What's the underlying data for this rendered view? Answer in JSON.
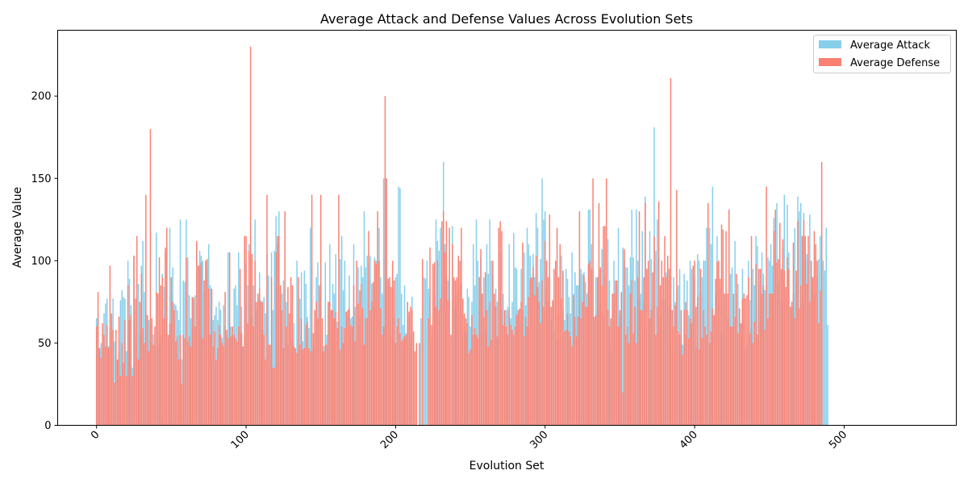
{
  "chart_data": {
    "type": "bar",
    "title": "Average Attack and Defense Values Across Evolution Sets",
    "xlabel": "Evolution Set",
    "ylabel": "Average Value",
    "xlim": [
      -26,
      575
    ],
    "ylim": [
      0,
      240
    ],
    "x_ticks": [
      0,
      100,
      200,
      300,
      400,
      500
    ],
    "y_ticks": [
      0,
      50,
      100,
      150,
      200
    ],
    "legend_position": "top-right",
    "grid": false,
    "colors": {
      "attack": "#87ceeb",
      "defense": "#fa8072"
    },
    "legend": [
      "Average Attack",
      "Average Defense"
    ],
    "x_start": 0,
    "series": [
      {
        "name": "Average Attack",
        "values": [
          65,
          66,
          45,
          50,
          47,
          68,
          74,
          77,
          48,
          56,
          60,
          77,
          51,
          50,
          38,
          45,
          76,
          82,
          78,
          77,
          45,
          100,
          89,
          73,
          35,
          103,
          54,
          43,
          86,
          55,
          97,
          112,
          81,
          68,
          67,
          64,
          61,
          50,
          55,
          48,
          117,
          46,
          50,
          55,
          92,
          84,
          105,
          108,
          7,
          120,
          80,
          96,
          74,
          73,
          70,
          64,
          125,
          40,
          88,
          87,
          125,
          102,
          79,
          65,
          61,
          78,
          79,
          110,
          96,
          106,
          103,
          100,
          81,
          100,
          95,
          110,
          85,
          83,
          64,
          67,
          72,
          64,
          75,
          70,
          53,
          73,
          60,
          55,
          105,
          64,
          60,
          55,
          83,
          85,
          73,
          105,
          60,
          72,
          48,
          53,
          98,
          85,
          110,
          103,
          65,
          85,
          125,
          70,
          77,
          93,
          76,
          58,
          78,
          68,
          104,
          91,
          39,
          105,
          70,
          106,
          127,
          110,
          130,
          85,
          80,
          88,
          82,
          75,
          50,
          63,
          75,
          52,
          62,
          42,
          100,
          79,
          77,
          93,
          51,
          94,
          86,
          66,
          59,
          120,
          45,
          48,
          66,
          90,
          99,
          82,
          98,
          44,
          48,
          99,
          55,
          75,
          110,
          70,
          86,
          80,
          104,
          63,
          63,
          101,
          115,
          82,
          100,
          62,
          66,
          91,
          65,
          66,
          110,
          72,
          89,
          96,
          65,
          97,
          90,
          130,
          96,
          103,
          98,
          103,
          86,
          72,
          102,
          100,
          120,
          120,
          90,
          80,
          150,
          150,
          89,
          88,
          84,
          55,
          53,
          66,
          90,
          92,
          145,
          144,
          80,
          61,
          85,
          56,
          66,
          67,
          55,
          78,
          0,
          0,
          0,
          0,
          0,
          65,
          0,
          90,
          89,
          100,
          83,
          78,
          54,
          77,
          80,
          125,
          112,
          106,
          120,
          85,
          160,
          110,
          90,
          88,
          90,
          0,
          121,
          86,
          72,
          80,
          55,
          84,
          86,
          55,
          60,
          57,
          83,
          78,
          60,
          75,
          110,
          85,
          125,
          100,
          71,
          102,
          80,
          90,
          58,
          110,
          92,
          125,
          100,
          91,
          72,
          83,
          75,
          70,
          105,
          70,
          80,
          55,
          70,
          72,
          110,
          65,
          75,
          117,
          96,
          95,
          68,
          59,
          95,
          70,
          105,
          73,
          120,
          110,
          103,
          90,
          104,
          90,
          129,
          120,
          87,
          101,
          150,
          125,
          130,
          83,
          75,
          72,
          64,
          75,
          57,
          70,
          52,
          67,
          48,
          103,
          70,
          64,
          95,
          89,
          78,
          68,
          105,
          80,
          93,
          85,
          85,
          90,
          95,
          92,
          93,
          87,
          80,
          131,
          131,
          110,
          95,
          64,
          90,
          70,
          93,
          74,
          107,
          68,
          90,
          72,
          113,
          88,
          45,
          67,
          100,
          80,
          70,
          120,
          66,
          80,
          108,
          100,
          96,
          96,
          85,
          102,
          131,
          102,
          88,
          131,
          100,
          76,
          80,
          118,
          75,
          139,
          60,
          91,
          118,
          101,
          73,
          181,
          106,
          125,
          102,
          65,
          77,
          90,
          77,
          93,
          64,
          72,
          91,
          47,
          90,
          75,
          82,
          85,
          95,
          50,
          49,
          92,
          55,
          88,
          67,
          100,
          95,
          55,
          90,
          48,
          104,
          100,
          80,
          90,
          100,
          100,
          120,
          105,
          120,
          110,
          145,
          65,
          80,
          115,
          60,
          83,
          55,
          86,
          70,
          80,
          65,
          71,
          92,
          96,
          60,
          112,
          80,
          86,
          65,
          62,
          95,
          65,
          47,
          50,
          100,
          76,
          59,
          95,
          85,
          115,
          109,
          85,
          70,
          105,
          92,
          82,
          85,
          102,
          100,
          110,
          97,
          126,
          98,
          135,
          87,
          111,
          75,
          108,
          140,
          80,
          134,
          105,
          71,
          72,
          80,
          120,
          86,
          139,
          130,
          135,
          74,
          129,
          99,
          104,
          100,
          128,
          84,
          90,
          80,
          82,
          90,
          101,
          115,
          121,
          100,
          94,
          120,
          61
        ]
      },
      {
        "name": "Average Defense",
        "values": [
          60,
          81,
          47,
          41,
          62,
          55,
          48,
          61,
          47,
          97,
          68,
          58,
          26,
          58,
          40,
          66,
          30,
          50,
          38,
          64,
          30,
          85,
          64,
          67,
          30,
          103,
          77,
          115,
          40,
          75,
          92,
          59,
          50,
          140,
          67,
          45,
          180,
          65,
          49,
          60,
          81,
          80,
          102,
          85,
          90,
          65,
          108,
          120,
          55,
          62,
          90,
          75,
          70,
          51,
          54,
          40,
          55,
          25,
          55,
          53,
          102,
          51,
          54,
          48,
          78,
          77,
          60,
          112,
          97,
          97,
          99,
          53,
          88,
          100,
          101,
          83,
          55,
          83,
          48,
          57,
          40,
          47,
          61,
          55,
          50,
          48,
          81,
          58,
          53,
          105,
          54,
          60,
          55,
          53,
          51,
          60,
          95,
          56,
          48,
          115,
          115,
          62,
          106,
          230,
          104,
          60,
          100,
          75,
          80,
          83,
          75,
          75,
          55,
          40,
          140,
          49,
          49,
          90,
          35,
          35,
          105,
          115,
          115,
          85,
          70,
          47,
          130,
          60,
          84,
          68,
          90,
          85,
          48,
          47,
          44,
          90,
          49,
          65,
          46,
          47,
          61,
          63,
          47,
          45,
          140,
          56,
          70,
          75,
          65,
          85,
          140,
          65,
          45,
          49,
          49,
          75,
          75,
          70,
          70,
          65,
          69,
          59,
          140,
          46,
          60,
          50,
          59,
          69,
          70,
          71,
          61,
          60,
          85,
          51,
          100,
          74,
          82,
          86,
          71,
          49,
          65,
          65,
          118,
          70,
          75,
          87,
          100,
          98,
          130,
          100,
          71,
          55,
          60,
          200,
          150,
          89,
          90,
          84,
          100,
          88,
          50,
          60,
          65,
          56,
          51,
          52,
          54,
          55,
          75,
          69,
          72,
          70,
          57,
          45,
          50,
          0,
          50,
          0,
          101,
          0,
          0,
          0,
          65,
          108,
          61,
          98,
          99,
          72,
          100,
          70,
          77,
          124,
          130,
          105,
          124,
          76,
          120,
          55,
          110,
          90,
          88,
          90,
          103,
          100,
          120,
          77,
          68,
          65,
          62,
          44,
          46,
          67,
          55,
          59,
          55,
          53,
          90,
          107,
          80,
          66,
          93,
          70,
          48,
          75,
          52,
          100,
          80,
          72,
          54,
          120,
          124,
          118,
          61,
          70,
          60,
          55,
          70,
          61,
          58,
          55,
          60,
          67,
          70,
          71,
          75,
          111,
          54,
          66,
          60,
          78,
          89,
          90,
          96,
          79,
          103,
          84,
          75,
          62,
          88,
          72,
          112,
          100,
          90,
          128,
          72,
          76,
          95,
          100,
          120,
          90,
          110,
          77,
          94,
          57,
          58,
          68,
          57,
          54,
          48,
          79,
          66,
          54,
          66,
          130,
          65,
          75,
          91,
          72,
          72,
          98,
          100,
          95,
          150,
          66,
          67,
          90,
          135,
          96,
          85,
          121,
          121,
          150,
          70,
          60,
          65,
          80,
          80,
          88,
          88,
          60,
          70,
          81,
          20,
          107,
          55,
          60,
          50,
          80,
          88,
          56,
          72,
          50,
          90,
          130,
          70,
          70,
          90,
          135,
          95,
          100,
          65,
          70,
          93,
          115,
          55,
          72,
          136,
          85,
          100,
          90,
          115,
          90,
          103,
          95,
          211,
          70,
          60,
          73,
          143,
          57,
          55,
          70,
          43,
          70,
          75,
          70,
          53,
          65,
          62,
          97,
          100,
          72,
          78,
          46,
          95,
          53,
          70,
          60,
          55,
          135,
          50,
          57,
          71,
          67,
          89,
          99,
          100,
          89,
          122,
          119,
          80,
          118,
          80,
          131,
          60,
          60,
          80,
          66,
          92,
          56,
          71,
          62,
          77,
          80,
          77,
          79,
          90,
          56,
          115,
          50,
          63,
          98,
          55,
          95,
          95,
          80,
          85,
          58,
          145,
          65,
          80,
          80,
          80,
          118,
          131,
          99,
          101,
          123,
          95,
          113,
          94,
          84,
          102,
          95,
          72,
          75,
          111,
          65,
          94,
          124,
          71,
          85,
          115,
          125,
          115,
          86,
          115,
          75,
          100,
          90,
          118,
          110,
          100,
          62,
          82,
          160
        ]
      }
    ]
  }
}
